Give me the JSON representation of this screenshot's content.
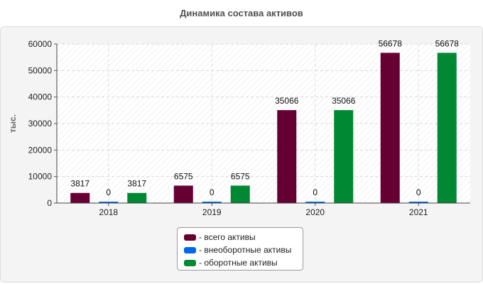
{
  "chart_data": {
    "type": "bar",
    "title": "Динамика состава активов",
    "ylabel": "тыс.",
    "xlabel": "",
    "categories": [
      "2018",
      "2019",
      "2020",
      "2021"
    ],
    "ylim": [
      0,
      60000
    ],
    "yticks": [
      0,
      10000,
      20000,
      30000,
      40000,
      50000,
      60000
    ],
    "grid": true,
    "legend_position": "bottom-center",
    "series": [
      {
        "name": "всего активы",
        "legend_label": "- всего активы",
        "color": "#660033",
        "values": [
          3817,
          6575,
          35066,
          56678
        ]
      },
      {
        "name": "внеоборотные активы",
        "legend_label": "- внеоборотные активы",
        "color": "#0066ee",
        "values": [
          0,
          0,
          0,
          0
        ]
      },
      {
        "name": "оборотные активы",
        "legend_label": "- оборотные активы",
        "color": "#008833",
        "values": [
          3817,
          6575,
          35066,
          56678
        ]
      }
    ]
  }
}
